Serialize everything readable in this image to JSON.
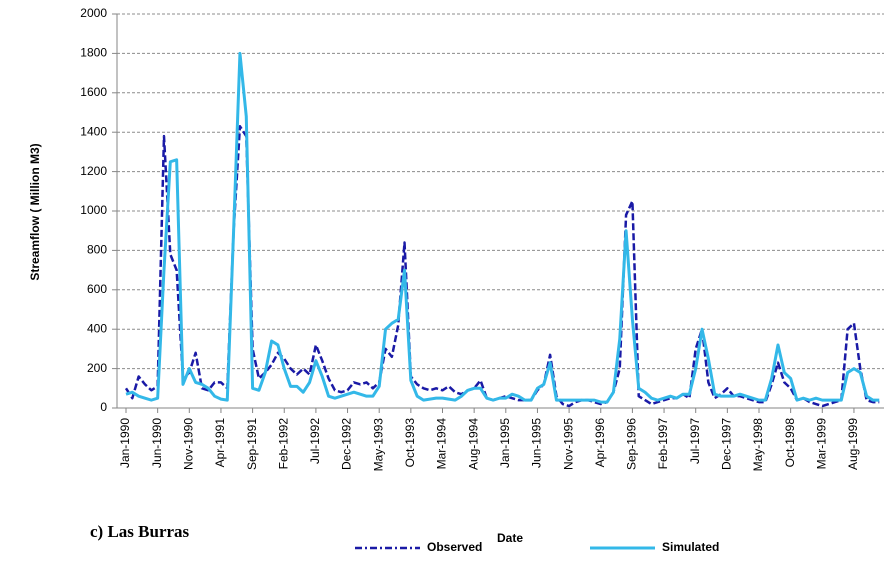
{
  "chart_data": {
    "type": "line",
    "caption": "c) Las Burras",
    "x_label": "Date",
    "y_label": "Streamflow ( Million M3)",
    "categories": [
      "Jan-1990",
      null,
      null,
      null,
      null,
      "Jun-1990",
      null,
      null,
      null,
      null,
      "Nov-1990",
      null,
      null,
      null,
      null,
      "Apr-1991",
      null,
      null,
      null,
      null,
      "Sep-1991",
      null,
      null,
      null,
      null,
      "Feb-1992",
      null,
      null,
      null,
      null,
      "Jul-1992",
      null,
      null,
      null,
      null,
      "Dec-1992",
      null,
      null,
      null,
      null,
      "May-1993",
      null,
      null,
      null,
      null,
      "Oct-1993",
      null,
      null,
      null,
      null,
      "Mar-1994",
      null,
      null,
      null,
      null,
      "Aug-1994",
      null,
      null,
      null,
      null,
      "Jan-1995",
      null,
      null,
      null,
      null,
      "Jun-1995",
      null,
      null,
      null,
      null,
      "Nov-1995",
      null,
      null,
      null,
      null,
      "Apr-1996",
      null,
      null,
      null,
      null,
      "Sep-1996",
      null,
      null,
      null,
      null,
      "Feb-1997",
      null,
      null,
      null,
      null,
      "Jul-1997",
      null,
      null,
      null,
      null,
      "Dec-1997",
      null,
      null,
      null,
      null,
      "May-1998",
      null,
      null,
      null,
      null,
      "Oct-1998",
      null,
      null,
      null,
      null,
      "Mar-1999",
      null,
      null,
      null,
      null,
      "Aug-1999",
      null,
      null,
      null,
      null
    ],
    "series": [
      {
        "name": "Observed",
        "color": "#1a1aa6",
        "dashed": true,
        "values": [
          100,
          50,
          160,
          120,
          90,
          110,
          1380,
          780,
          700,
          150,
          180,
          280,
          100,
          90,
          130,
          130,
          100,
          900,
          1430,
          1380,
          300,
          150,
          180,
          220,
          280,
          250,
          200,
          170,
          200,
          170,
          320,
          240,
          150,
          90,
          80,
          90,
          130,
          120,
          130,
          100,
          130,
          300,
          260,
          420,
          840,
          160,
          120,
          100,
          90,
          100,
          90,
          110,
          80,
          70,
          90,
          100,
          140,
          50,
          40,
          50,
          60,
          50,
          40,
          40,
          40,
          90,
          120,
          270,
          60,
          20,
          10,
          30,
          40,
          40,
          30,
          20,
          30,
          80,
          200,
          980,
          1050,
          60,
          40,
          20,
          30,
          40,
          50,
          50,
          70,
          50,
          300,
          400,
          130,
          50,
          70,
          100,
          60,
          60,
          50,
          40,
          30,
          30,
          120,
          230,
          130,
          100,
          40,
          50,
          30,
          20,
          10,
          20,
          30,
          40,
          400,
          430,
          200,
          40,
          30,
          30
        ]
      },
      {
        "name": "Simulated",
        "color": "#33b8e8",
        "dashed": false,
        "values": [
          70,
          80,
          60,
          50,
          40,
          50,
          700,
          1250,
          1260,
          120,
          200,
          130,
          120,
          100,
          60,
          45,
          40,
          900,
          1800,
          1480,
          100,
          90,
          180,
          340,
          320,
          200,
          110,
          110,
          80,
          130,
          240,
          160,
          60,
          50,
          60,
          70,
          80,
          70,
          60,
          60,
          110,
          400,
          430,
          450,
          700,
          140,
          60,
          40,
          45,
          50,
          50,
          45,
          40,
          60,
          90,
          100,
          100,
          50,
          40,
          50,
          50,
          70,
          60,
          40,
          40,
          100,
          120,
          230,
          40,
          40,
          40,
          40,
          40,
          40,
          40,
          30,
          30,
          80,
          350,
          900,
          450,
          100,
          80,
          50,
          40,
          50,
          60,
          50,
          70,
          70,
          200,
          400,
          250,
          70,
          60,
          60,
          60,
          70,
          60,
          50,
          40,
          40,
          150,
          320,
          180,
          150,
          40,
          50,
          40,
          50,
          40,
          40,
          40,
          40,
          180,
          200,
          180,
          60,
          40,
          40
        ]
      }
    ],
    "ylim": [
      0,
      2000
    ],
    "yticks": [
      0,
      200,
      400,
      600,
      800,
      1000,
      1200,
      1400,
      1600,
      1800,
      2000
    ],
    "grid": true
  }
}
